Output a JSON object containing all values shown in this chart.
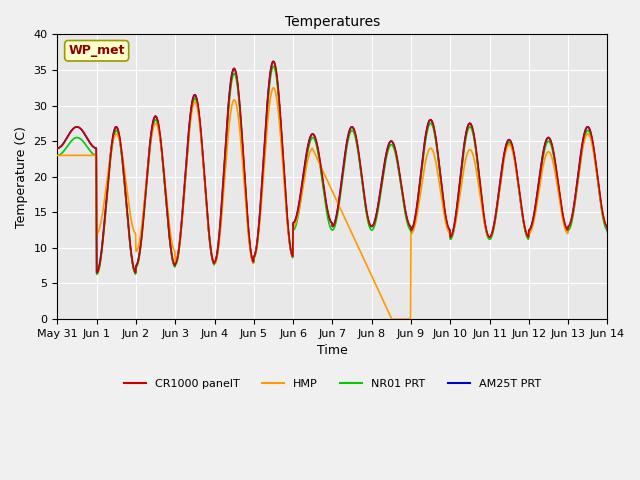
{
  "title": "Temperatures",
  "ylabel": "Temperature (C)",
  "xlabel": "Time",
  "annotation": "WP_met",
  "ylim": [
    0,
    40
  ],
  "background_color": "#e8e8e8",
  "fig_color": "#f0f0f0",
  "colors": {
    "CR1000 panelT": "#cc0000",
    "HMP": "#ff9900",
    "NR01 PRT": "#00cc00",
    "AM25T PRT": "#0000cc"
  },
  "legend_labels": [
    "CR1000 panelT",
    "HMP",
    "NR01 PRT",
    "AM25T PRT"
  ],
  "x_tick_positions": [
    0,
    24,
    48,
    72,
    96,
    120,
    144,
    168,
    192,
    216,
    240,
    264,
    288,
    312,
    336
  ],
  "x_tick_labels": [
    "May 31",
    "Jun 1",
    "Jun 2",
    "Jun 3",
    "Jun 4",
    "Jun 5",
    "Jun 6",
    "Jun 7",
    "Jun 8",
    "Jun 9",
    "Jun 10",
    "Jun 11",
    "Jun 12",
    "Jun 13",
    "Jun 14"
  ],
  "xlim": [
    0,
    336
  ],
  "peaks_red": [
    27.0,
    27.0,
    28.5,
    31.5,
    35.2,
    36.2,
    26.0,
    27.0,
    25.0,
    28.0,
    27.5,
    25.2,
    25.5,
    27.0,
    26.0
  ],
  "troughs_red": [
    24.0,
    6.5,
    7.5,
    7.8,
    8.0,
    8.8,
    13.5,
    13.0,
    13.0,
    12.5,
    11.5,
    11.5,
    12.5,
    13.0,
    12.5
  ],
  "peaks_orange": [
    23.0,
    26.0,
    27.5,
    30.5,
    30.8,
    32.5,
    24.0,
    0.0,
    0.0,
    24.0,
    23.8,
    24.5,
    23.5,
    26.0,
    25.5
  ],
  "troughs_orange": [
    23.0,
    12.0,
    9.5,
    8.0,
    7.8,
    8.8,
    13.0,
    0.0,
    0.0,
    12.0,
    11.5,
    11.5,
    12.0,
    13.0,
    12.5
  ],
  "orange_gap_start": 156,
  "orange_gap_end": 204,
  "peaks_green": [
    25.5,
    26.5,
    28.0,
    31.0,
    34.5,
    35.5,
    25.5,
    26.5,
    24.5,
    27.5,
    27.0,
    24.8,
    25.0,
    26.5,
    25.5
  ],
  "troughs_green": [
    23.0,
    6.3,
    7.3,
    7.6,
    7.8,
    8.6,
    12.5,
    12.5,
    12.5,
    12.2,
    11.2,
    11.2,
    12.2,
    12.5,
    12.2
  ],
  "yticks": [
    0,
    5,
    10,
    15,
    20,
    25,
    30,
    35,
    40
  ],
  "linewidth": 1.2,
  "grid_color": "#ffffff",
  "title_fontsize": 10,
  "label_fontsize": 9,
  "tick_fontsize": 8,
  "legend_fontsize": 8
}
